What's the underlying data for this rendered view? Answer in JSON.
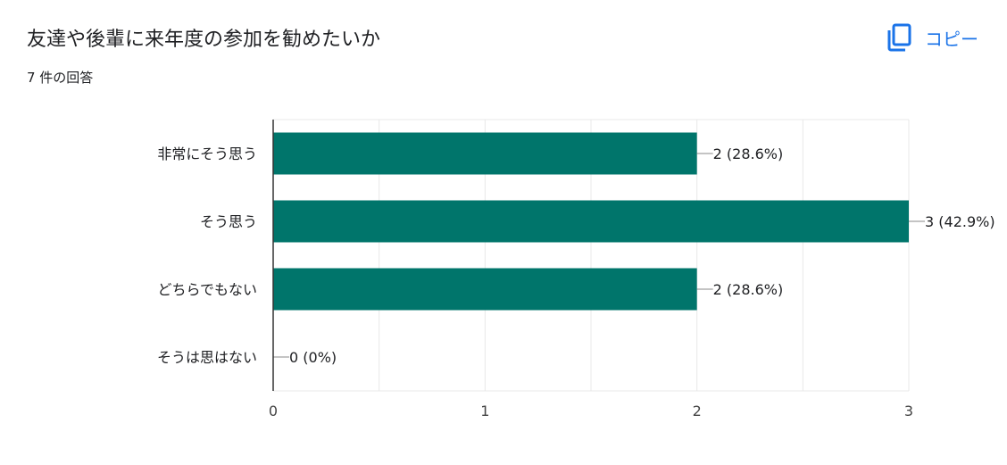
{
  "header": {
    "title": "友達や後輩に来年度の参加を勧めたいか",
    "response_count": "7 件の回答",
    "copy_label": "コピー",
    "copy_icon": "copy-icon"
  },
  "colors": {
    "bar": "#00756b",
    "accent": "#1a73e8",
    "grid": "#e8e8e8",
    "axis": "#333333"
  },
  "chart_data": {
    "type": "bar",
    "orientation": "horizontal",
    "categories": [
      "非常にそう思う",
      "そう思う",
      "どちらでもない",
      "そうは思はない"
    ],
    "values": [
      2,
      3,
      2,
      0
    ],
    "value_labels": [
      "2 (28.6%)",
      "3 (42.9%)",
      "2 (28.6%)",
      "0 (0%)"
    ],
    "x_ticks": [
      "0",
      "1",
      "2",
      "3"
    ],
    "xlim": [
      0,
      3
    ],
    "grid": true,
    "legend": "none"
  }
}
